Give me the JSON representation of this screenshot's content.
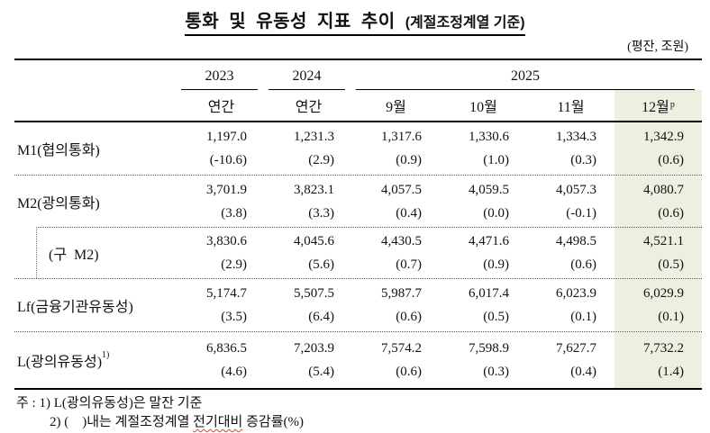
{
  "title": {
    "main": "통화 및 유동성 지표 추이 ",
    "sub": "(계절조정계열 기준)"
  },
  "unit_label": "(평잔, 조원)",
  "table": {
    "years": [
      "2023",
      "2024",
      "2025"
    ],
    "col_headers": [
      "연간",
      "연간",
      "9월",
      "10월",
      "11월",
      "12월"
    ],
    "col_header_sup": "p",
    "rows": [
      {
        "key": "m1",
        "label": "M1(협의통화)",
        "sup": "",
        "values": [
          "1,197.0",
          "1,231.3",
          "1,317.6",
          "1,330.6",
          "1,334.3",
          "1,342.9"
        ],
        "growth": [
          "(-10.6)",
          "(2.9)",
          "(0.9)",
          "(1.0)",
          "(0.3)",
          "(0.6)"
        ]
      },
      {
        "key": "m2",
        "label": "M2(광의통화)",
        "sup": "",
        "values": [
          "3,701.9",
          "3,823.1",
          "4,057.5",
          "4,059.5",
          "4,057.3",
          "4,080.7"
        ],
        "growth": [
          "(3.8)",
          "(3.3)",
          "(0.4)",
          "(0.0)",
          "(-0.1)",
          "(0.6)"
        ]
      },
      {
        "key": "old-m2",
        "label": "(구  M2)",
        "sup": "",
        "values": [
          "3,830.6",
          "4,045.6",
          "4,430.5",
          "4,471.6",
          "4,498.5",
          "4,521.1"
        ],
        "growth": [
          "(2.9)",
          "(5.6)",
          "(0.7)",
          "(0.9)",
          "(0.6)",
          "(0.5)"
        ]
      },
      {
        "key": "lf",
        "label": "Lf(금융기관유동성)",
        "sup": "",
        "values": [
          "5,174.7",
          "5,507.5",
          "5,987.7",
          "6,017.4",
          "6,023.9",
          "6,029.9"
        ],
        "growth": [
          "(3.5)",
          "(6.4)",
          "(0.6)",
          "(0.5)",
          "(0.1)",
          "(0.1)"
        ]
      },
      {
        "key": "l",
        "label": "L(광의유동성)",
        "sup": "1)",
        "values": [
          "6,836.5",
          "7,203.9",
          "7,574.2",
          "7,598.9",
          "7,627.7",
          "7,732.2"
        ],
        "growth": [
          "(4.6)",
          "(5.4)",
          "(0.6)",
          "(0.3)",
          "(0.4)",
          "(1.4)"
        ]
      }
    ]
  },
  "footnotes": {
    "line1": "주 : 1) L(광의유동성)은 말잔 기준",
    "line2_prefix": "2) (    )내는 계절조정계열 ",
    "line2_wavy": "전기대비",
    "line2_suffix": " 증감률(%)"
  },
  "colors": {
    "highlight": "#ebf0e1",
    "wavy_underline": "#d2481f"
  }
}
